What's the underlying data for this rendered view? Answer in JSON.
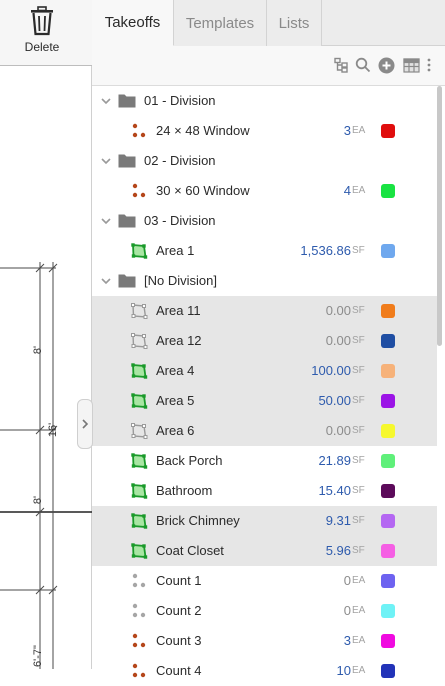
{
  "toolbar": {
    "delete_label": "Delete"
  },
  "drawing": {
    "dims": [
      "8'",
      "16'",
      "8'",
      "6'-7\""
    ]
  },
  "tabs": [
    {
      "label": "Takeoffs",
      "active": true
    },
    {
      "label": "Templates",
      "active": false
    },
    {
      "label": "Lists",
      "active": false
    }
  ],
  "list_toolbar": {
    "icons": [
      "hierarchy-icon",
      "search-icon",
      "add-circle-icon",
      "table-icon",
      "more-vertical-icon"
    ]
  },
  "rows": [
    {
      "kind": "group",
      "name": "01 - Division"
    },
    {
      "kind": "item",
      "type": "count",
      "name": "24 × 48 Window",
      "value": "3",
      "unit": "EA",
      "color": "#e00d0d",
      "highlight": false
    },
    {
      "kind": "group",
      "name": "02 - Division"
    },
    {
      "kind": "item",
      "type": "count",
      "name": "30 × 60 Window",
      "value": "4",
      "unit": "EA",
      "color": "#19e342",
      "highlight": false
    },
    {
      "kind": "group",
      "name": "03 - Division"
    },
    {
      "kind": "item",
      "type": "area",
      "name": "Area 1",
      "value": "1,536.86",
      "unit": "SF",
      "color": "#6fa8ee",
      "highlight": false
    },
    {
      "kind": "group",
      "name": "[No Division]"
    },
    {
      "kind": "item",
      "type": "area-off",
      "name": "Area 11",
      "value": "0.00",
      "unit": "SF",
      "color": "#f07c1b",
      "highlight": true
    },
    {
      "kind": "item",
      "type": "area-off",
      "name": "Area 12",
      "value": "0.00",
      "unit": "SF",
      "color": "#1f4ea3",
      "highlight": true
    },
    {
      "kind": "item",
      "type": "area",
      "name": "Area 4",
      "value": "100.00",
      "unit": "SF",
      "color": "#f6b27a",
      "highlight": true
    },
    {
      "kind": "item",
      "type": "area",
      "name": "Area 5",
      "value": "50.00",
      "unit": "SF",
      "color": "#9b14e6",
      "highlight": true
    },
    {
      "kind": "item",
      "type": "area-off",
      "name": "Area 6",
      "value": "0.00",
      "unit": "SF",
      "color": "#f6f82e",
      "highlight": true
    },
    {
      "kind": "item",
      "type": "area",
      "name": "Back Porch",
      "value": "21.89",
      "unit": "SF",
      "color": "#5ff07a",
      "highlight": false
    },
    {
      "kind": "item",
      "type": "area",
      "name": "Bathroom",
      "value": "15.40",
      "unit": "SF",
      "color": "#5c0a5a",
      "highlight": false
    },
    {
      "kind": "item",
      "type": "area",
      "name": "Brick Chimney",
      "value": "9.31",
      "unit": "SF",
      "color": "#b467f2",
      "highlight": true
    },
    {
      "kind": "item",
      "type": "area",
      "name": "Coat Closet",
      "value": "5.96",
      "unit": "SF",
      "color": "#f55fe4",
      "highlight": true
    },
    {
      "kind": "item",
      "type": "count-off",
      "name": "Count 1",
      "value": "0",
      "unit": "EA",
      "color": "#6e62f0",
      "highlight": false
    },
    {
      "kind": "item",
      "type": "count-off",
      "name": "Count 2",
      "value": "0",
      "unit": "EA",
      "color": "#6ff2f6",
      "highlight": false
    },
    {
      "kind": "item",
      "type": "count",
      "name": "Count 3",
      "value": "3",
      "unit": "EA",
      "color": "#f00ae0",
      "highlight": false
    },
    {
      "kind": "item",
      "type": "count",
      "name": "Count 4",
      "value": "10",
      "unit": "EA",
      "color": "#2233b8",
      "highlight": false
    }
  ]
}
